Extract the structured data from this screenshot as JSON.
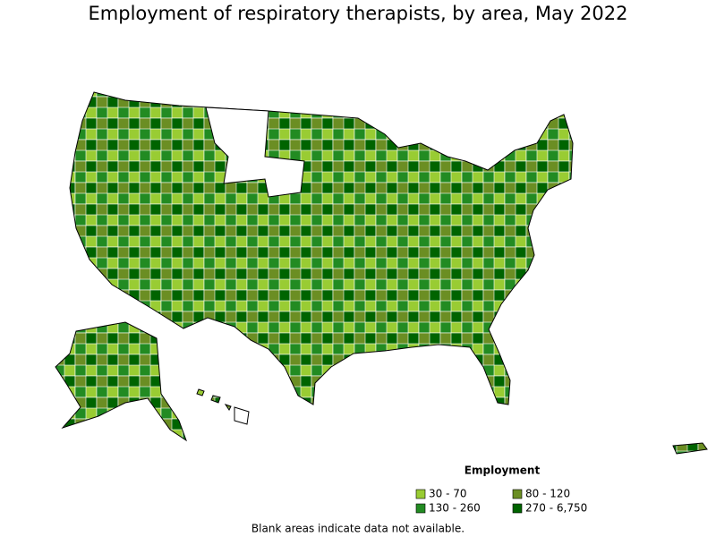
{
  "title": "Employment of respiratory therapists, by area, May 2022",
  "legend": {
    "title": "Employment",
    "items": [
      {
        "label": "30 - 70",
        "color": "#99cc33"
      },
      {
        "label": "80 - 120",
        "color": "#6b8e23"
      },
      {
        "label": "130 - 260",
        "color": "#228b22"
      },
      {
        "label": "270 - 6,750",
        "color": "#006400"
      }
    ]
  },
  "note": "Blank areas indicate data not available."
}
